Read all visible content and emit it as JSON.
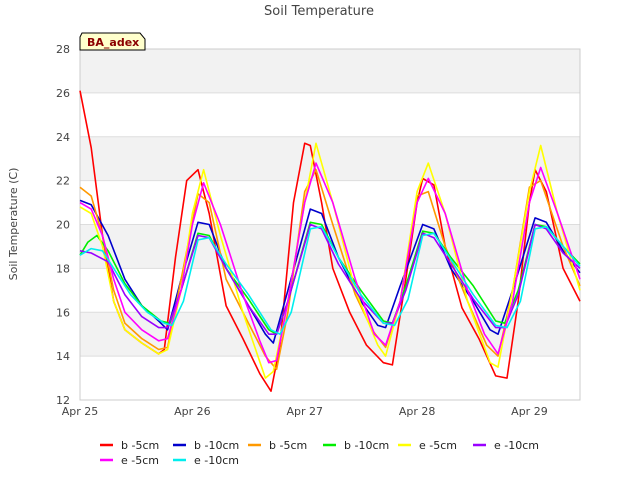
{
  "chart_data": {
    "type": "line",
    "title": "Soil Temperature",
    "xlabel": "",
    "ylabel": "Soil Temperature (C)",
    "badge": "BA_adex",
    "ylim": [
      12,
      28
    ],
    "xlim": [
      0,
      4.45
    ],
    "y_ticks": [
      12,
      14,
      16,
      18,
      20,
      22,
      24,
      26,
      28
    ],
    "x_ticks": [
      {
        "value": 0,
        "label": "Apr 25"
      },
      {
        "value": 1,
        "label": "Apr 26"
      },
      {
        "value": 2,
        "label": "Apr 27"
      },
      {
        "value": 3,
        "label": "Apr 28"
      },
      {
        "value": 4,
        "label": "Apr 29"
      }
    ],
    "grid": "horizontal bands",
    "legend_position": "bottom",
    "series": [
      {
        "name": "b -5cm",
        "color": "#ff0000",
        "x": [
          0,
          0.1,
          0.2,
          0.3,
          0.4,
          0.55,
          0.7,
          0.75,
          0.85,
          0.95,
          1.05,
          1.15,
          1.3,
          1.45,
          1.6,
          1.7,
          1.78,
          1.9,
          2.0,
          2.05,
          2.15,
          2.25,
          2.4,
          2.55,
          2.7,
          2.78,
          2.9,
          3.0,
          3.05,
          3.15,
          3.25,
          3.4,
          3.55,
          3.7,
          3.8,
          3.9,
          4.0,
          4.05,
          4.15,
          4.3,
          4.45
        ],
        "y": [
          26.1,
          23.5,
          19.5,
          16.5,
          15.2,
          14.6,
          14.1,
          14.3,
          18.5,
          22.0,
          22.5,
          20.5,
          16.3,
          14.8,
          13.2,
          12.4,
          14.5,
          21.0,
          23.7,
          23.6,
          21.0,
          18.0,
          16.0,
          14.5,
          13.7,
          13.6,
          17.5,
          21.0,
          22.1,
          21.8,
          19.0,
          16.2,
          14.8,
          13.1,
          13.0,
          16.5,
          21.0,
          22.5,
          21.5,
          18.0,
          16.5
        ]
      },
      {
        "name": "b -10cm",
        "color": "#0000cc",
        "x": [
          0,
          0.1,
          0.25,
          0.4,
          0.55,
          0.7,
          0.78,
          0.9,
          1.05,
          1.15,
          1.3,
          1.5,
          1.65,
          1.72,
          1.85,
          2.05,
          2.15,
          2.3,
          2.5,
          2.65,
          2.72,
          2.85,
          3.05,
          3.15,
          3.3,
          3.5,
          3.65,
          3.72,
          3.85,
          4.05,
          4.15,
          4.3,
          4.45
        ],
        "y": [
          21.1,
          20.9,
          19.5,
          17.5,
          16.3,
          15.6,
          15.2,
          17.5,
          20.1,
          20.0,
          18.0,
          16.3,
          15.0,
          14.6,
          17.0,
          20.7,
          20.5,
          18.5,
          16.5,
          15.4,
          15.3,
          17.2,
          20.0,
          19.8,
          18.0,
          16.5,
          15.2,
          15.0,
          17.0,
          20.3,
          20.1,
          18.8,
          17.8
        ]
      },
      {
        "name": "b -5cm",
        "color": "#ff9900",
        "x": [
          0,
          0.1,
          0.2,
          0.3,
          0.4,
          0.55,
          0.7,
          0.78,
          0.9,
          1.05,
          1.15,
          1.3,
          1.5,
          1.65,
          1.75,
          1.85,
          2.0,
          2.1,
          2.25,
          2.45,
          2.6,
          2.72,
          2.85,
          3.0,
          3.1,
          3.25,
          3.45,
          3.62,
          3.72,
          3.85,
          4.0,
          4.1,
          4.3,
          4.45
        ],
        "y": [
          21.7,
          21.3,
          19.5,
          17.0,
          15.5,
          14.8,
          14.3,
          14.4,
          17.5,
          21.4,
          21.0,
          17.5,
          15.5,
          14.0,
          13.4,
          16.0,
          21.5,
          22.5,
          20.0,
          16.8,
          15.2,
          14.4,
          16.5,
          21.3,
          21.5,
          19.0,
          16.5,
          14.5,
          14.0,
          17.0,
          21.7,
          22.0,
          19.0,
          17.2
        ]
      },
      {
        "name": "b -10cm",
        "color": "#00ee00",
        "x": [
          0,
          0.07,
          0.15,
          0.25,
          0.4,
          0.55,
          0.72,
          0.8,
          0.9,
          1.05,
          1.15,
          1.3,
          1.5,
          1.68,
          1.75,
          1.85,
          2.05,
          2.15,
          2.3,
          2.5,
          2.7,
          2.78,
          2.9,
          3.05,
          3.15,
          3.3,
          3.5,
          3.7,
          3.78,
          3.9,
          4.05,
          4.15,
          4.3,
          4.45
        ],
        "y": [
          18.6,
          19.2,
          19.5,
          18.8,
          17.3,
          16.3,
          15.6,
          15.5,
          17.0,
          19.6,
          19.5,
          18.0,
          16.6,
          15.2,
          15.0,
          16.5,
          20.1,
          20.0,
          18.5,
          17.0,
          15.6,
          15.5,
          17.2,
          19.7,
          19.6,
          18.5,
          17.2,
          15.6,
          15.5,
          17.0,
          20.0,
          19.9,
          19.0,
          18.2
        ]
      },
      {
        "name": "e -5cm",
        "color": "#ffff00",
        "x": [
          0,
          0.1,
          0.2,
          0.3,
          0.4,
          0.55,
          0.7,
          0.78,
          0.9,
          1.0,
          1.1,
          1.25,
          1.45,
          1.65,
          1.72,
          1.85,
          2.0,
          2.1,
          2.25,
          2.45,
          2.65,
          2.72,
          2.85,
          3.0,
          3.1,
          3.25,
          3.45,
          3.65,
          3.72,
          3.85,
          4.0,
          4.1,
          4.25,
          4.45
        ],
        "y": [
          20.8,
          20.5,
          19.0,
          16.5,
          15.2,
          14.6,
          14.1,
          14.3,
          17.0,
          20.5,
          22.5,
          19.5,
          16.0,
          13.0,
          13.3,
          16.5,
          21.0,
          23.7,
          21.0,
          17.0,
          14.5,
          14.0,
          16.5,
          21.5,
          22.8,
          20.5,
          16.5,
          13.7,
          13.5,
          17.0,
          21.5,
          23.6,
          20.5,
          17.0
        ]
      },
      {
        "name": "e -10cm",
        "color": "#9900ff",
        "x": [
          0,
          0.1,
          0.25,
          0.4,
          0.55,
          0.7,
          0.78,
          0.9,
          1.05,
          1.15,
          1.3,
          1.5,
          1.68,
          1.75,
          1.85,
          2.05,
          2.15,
          2.3,
          2.5,
          2.7,
          2.78,
          2.9,
          3.05,
          3.15,
          3.3,
          3.5,
          3.7,
          3.78,
          3.9,
          4.05,
          4.15,
          4.3,
          4.45
        ],
        "y": [
          18.8,
          18.7,
          18.3,
          16.8,
          15.8,
          15.3,
          15.3,
          17.0,
          19.5,
          19.4,
          18.0,
          16.3,
          15.0,
          15.0,
          16.5,
          20.0,
          19.8,
          18.2,
          16.6,
          15.5,
          15.5,
          17.0,
          19.6,
          19.4,
          18.2,
          16.6,
          15.3,
          15.3,
          16.8,
          20.0,
          19.8,
          18.7,
          18.0
        ]
      },
      {
        "name": "e -5cm",
        "color": "#ff00ff",
        "x": [
          0,
          0.1,
          0.2,
          0.3,
          0.4,
          0.55,
          0.7,
          0.78,
          0.9,
          1.0,
          1.1,
          1.25,
          1.45,
          1.6,
          1.68,
          1.75,
          1.85,
          2.0,
          2.1,
          2.25,
          2.45,
          2.62,
          2.72,
          2.85,
          3.0,
          3.1,
          3.25,
          3.45,
          3.6,
          3.72,
          3.85,
          4.0,
          4.1,
          4.25,
          4.45
        ],
        "y": [
          21.0,
          20.7,
          19.5,
          17.5,
          16.0,
          15.2,
          14.7,
          14.8,
          17.0,
          20.0,
          21.9,
          20.0,
          16.8,
          14.7,
          13.7,
          13.8,
          16.5,
          21.0,
          22.8,
          21.0,
          17.5,
          15.0,
          14.5,
          16.5,
          21.0,
          22.1,
          20.5,
          17.0,
          15.0,
          14.1,
          16.5,
          21.0,
          22.6,
          20.5,
          17.5
        ]
      },
      {
        "name": "e -10cm",
        "color": "#00eeee",
        "x": [
          0,
          0.1,
          0.2,
          0.3,
          0.45,
          0.6,
          0.75,
          0.82,
          0.92,
          1.05,
          1.15,
          1.3,
          1.5,
          1.7,
          1.78,
          1.88,
          2.05,
          2.15,
          2.3,
          2.5,
          2.7,
          2.8,
          2.92,
          3.05,
          3.15,
          3.3,
          3.5,
          3.7,
          3.8,
          3.92,
          4.05,
          4.15,
          4.3,
          4.45
        ],
        "y": [
          18.6,
          18.9,
          18.8,
          18.0,
          16.8,
          16.0,
          15.5,
          15.4,
          16.5,
          19.3,
          19.4,
          18.2,
          16.8,
          15.2,
          15.0,
          16.0,
          19.8,
          19.9,
          18.5,
          16.8,
          15.5,
          15.4,
          16.6,
          19.5,
          19.6,
          18.4,
          16.8,
          15.4,
          15.3,
          16.5,
          19.8,
          19.9,
          19.0,
          18.1
        ]
      }
    ]
  }
}
